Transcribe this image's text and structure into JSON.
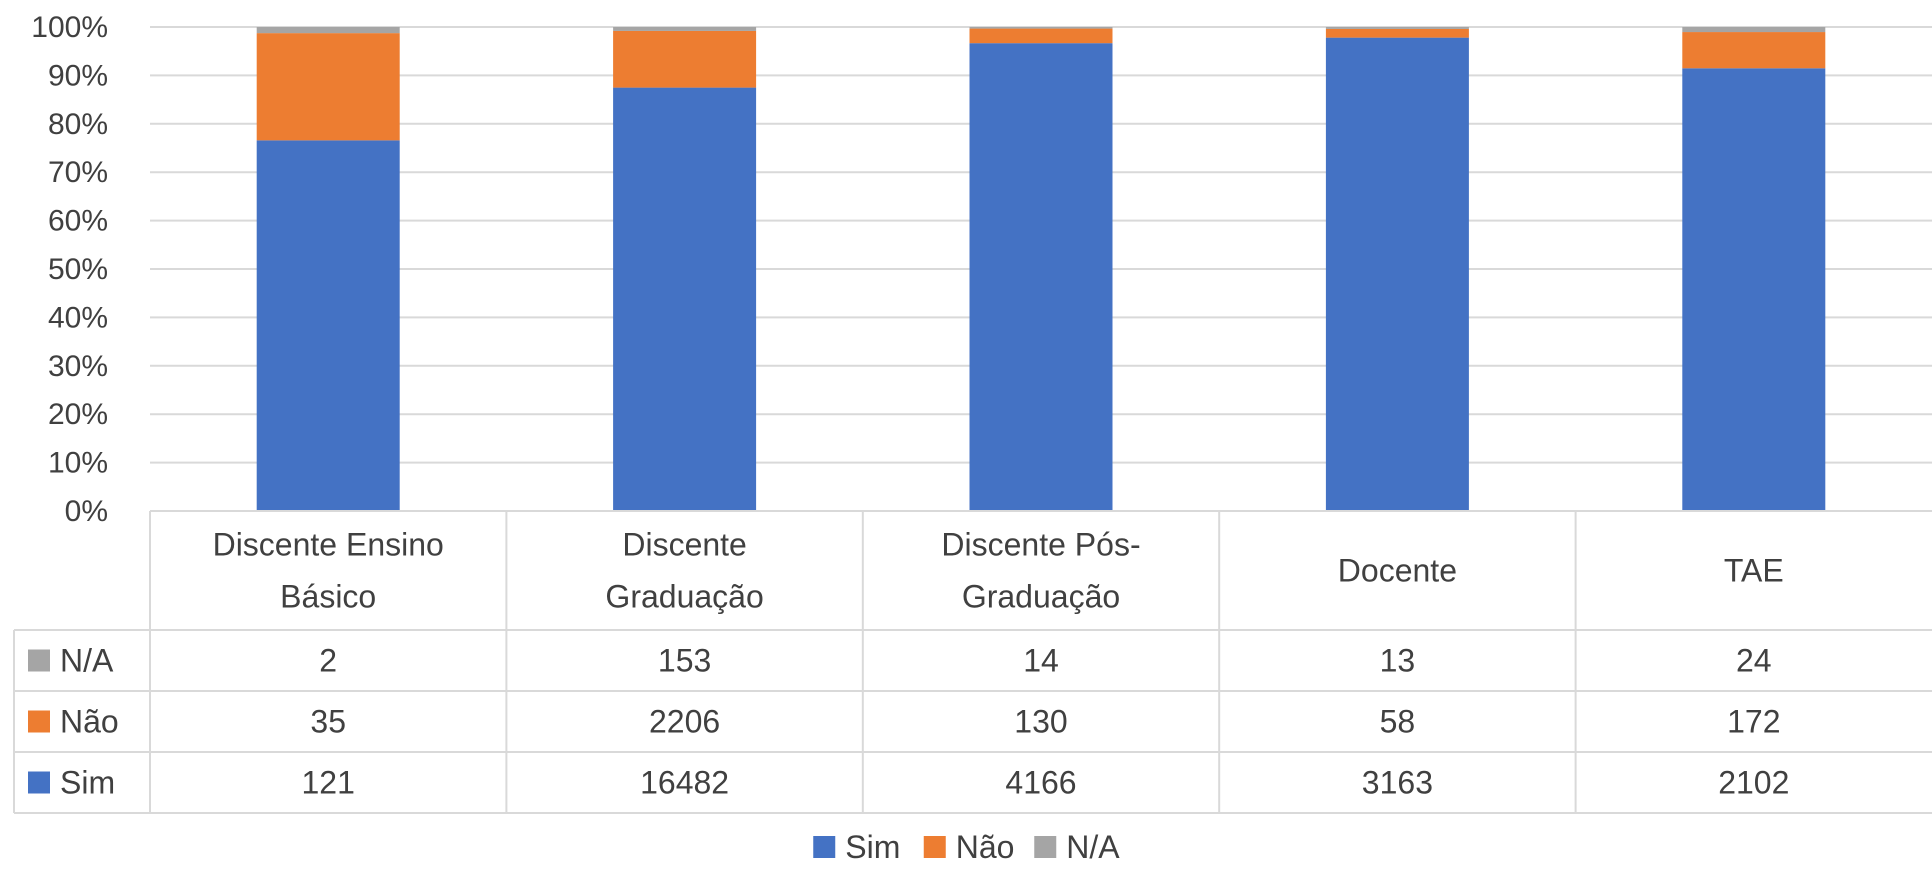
{
  "chart_data": {
    "type": "bar",
    "stacked": "percent",
    "title": "",
    "xlabel": "",
    "ylabel": "",
    "ylim": [
      0,
      100
    ],
    "y_ticks": [
      "0%",
      "10%",
      "20%",
      "30%",
      "40%",
      "50%",
      "60%",
      "70%",
      "80%",
      "90%",
      "100%"
    ],
    "grid": true,
    "legend": "bottom",
    "data_table": true,
    "categories": [
      [
        "Discente Ensino",
        "Básico"
      ],
      [
        "Discente",
        "Graduação"
      ],
      [
        "Discente Pós-",
        "Graduação"
      ],
      [
        "Docente"
      ],
      [
        "TAE"
      ]
    ],
    "series": [
      {
        "name": "Sim",
        "color": "#4472C4",
        "values": [
          121,
          16482,
          4166,
          3163,
          2102
        ],
        "labels": [
          "121",
          "16482",
          "4166",
          "3163",
          "2102"
        ]
      },
      {
        "name": "Não",
        "color": "#ED7D31",
        "values": [
          35,
          2206,
          130,
          58,
          172
        ],
        "labels": [
          "35",
          "2206",
          "130",
          "58",
          "172"
        ]
      },
      {
        "name": "N/A",
        "color": "#A5A5A5",
        "values": [
          2,
          153,
          14,
          13,
          24
        ],
        "labels": [
          "2",
          "153",
          "14",
          "13",
          "24"
        ]
      }
    ],
    "table_row_order": [
      "N/A",
      "Não",
      "Sim"
    ]
  }
}
